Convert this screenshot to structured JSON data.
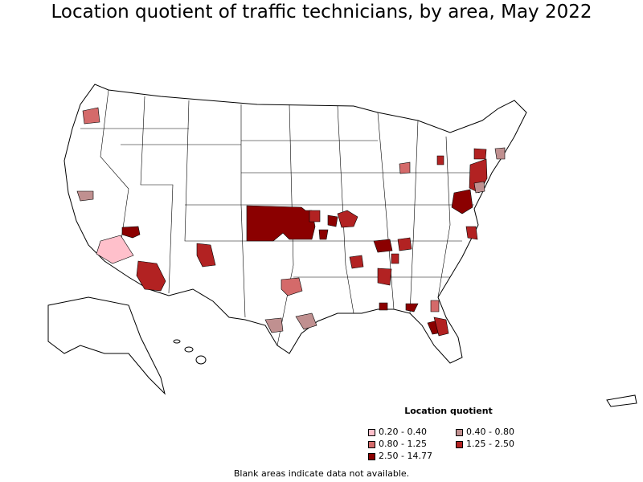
{
  "title": "Location quotient of traffic technicians, by area, May 2022",
  "legend": {
    "title": "Location quotient",
    "items": [
      {
        "label": "0.20 - 0.40",
        "color": "#ffc0cb"
      },
      {
        "label": "0.40 - 0.80",
        "color": "#c09090"
      },
      {
        "label": "0.80 - 1.25",
        "color": "#d46a6a"
      },
      {
        "label": "1.25 - 2.50",
        "color": "#b22222"
      },
      {
        "label": "2.50 - 14.77",
        "color": "#8b0000"
      }
    ]
  },
  "note": "Blank areas indicate data not available.",
  "colors": {
    "border": "#000000",
    "land": "#ffffff",
    "lq_0_20_0_40": "#ffc0cb",
    "lq_0_40_0_80": "#c09090",
    "lq_0_80_1_25": "#d46a6a",
    "lq_1_25_2_50": "#b22222",
    "lq_2_50_14_77": "#8b0000"
  }
}
